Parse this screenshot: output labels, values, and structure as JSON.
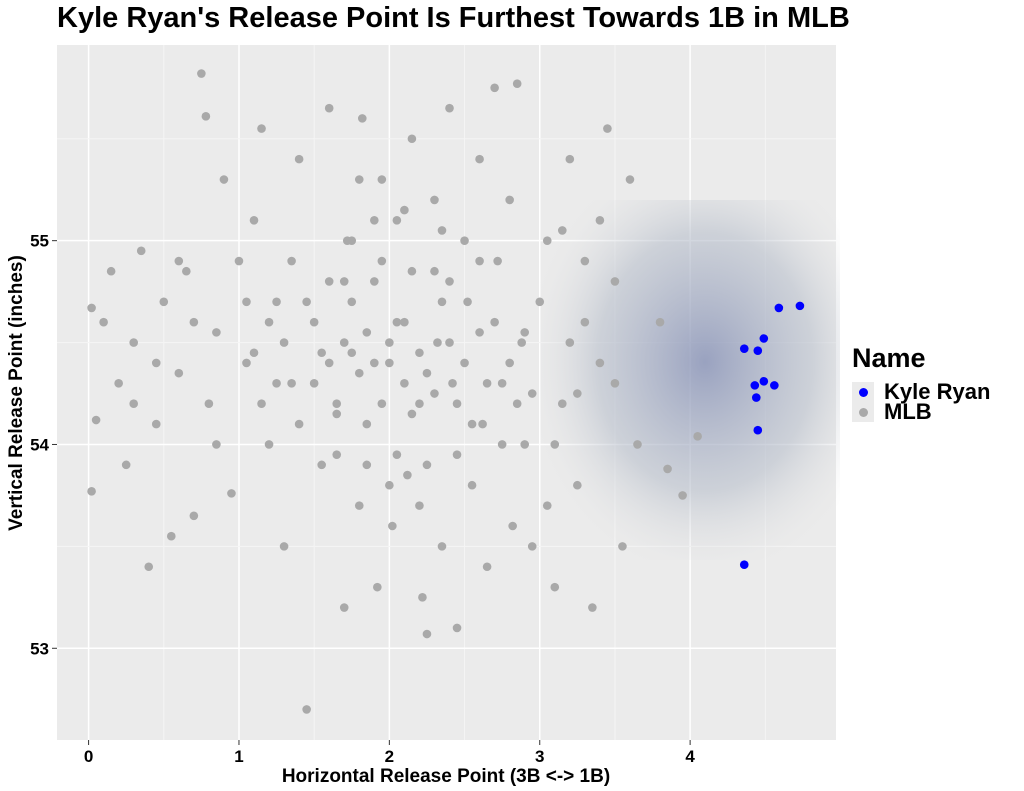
{
  "chart_data": {
    "type": "scatter",
    "title": "Kyle Ryan's Release Point Is Furthest Towards 1B in MLB",
    "xlabel": "Horizontal Release Point (3B <-> 1B)",
    "ylabel": "Vertical Release Point (inches)",
    "xlim": [
      -0.21,
      4.97
    ],
    "ylim": [
      52.55,
      55.96
    ],
    "xticks": [
      0,
      1,
      2,
      3,
      4
    ],
    "yticks": [
      53,
      54,
      55
    ],
    "grid": true,
    "legend": {
      "title": "Name",
      "placement": "right"
    },
    "series": [
      {
        "name": "Kyle Ryan",
        "color": "#0000ff",
        "points": [
          [
            4.59,
            54.67
          ],
          [
            4.73,
            54.68
          ],
          [
            4.49,
            54.52
          ],
          [
            4.36,
            54.47
          ],
          [
            4.45,
            54.46
          ],
          [
            4.49,
            54.31
          ],
          [
            4.43,
            54.29
          ],
          [
            4.56,
            54.29
          ],
          [
            4.44,
            54.23
          ],
          [
            4.45,
            54.07
          ],
          [
            4.36,
            53.41
          ]
        ]
      },
      {
        "name": "MLB",
        "color": "#a9a9a9",
        "points": [
          [
            0.02,
            54.67
          ],
          [
            0.05,
            54.12
          ],
          [
            0.02,
            53.77
          ],
          [
            0.1,
            54.6
          ],
          [
            0.15,
            54.85
          ],
          [
            0.2,
            54.3
          ],
          [
            0.25,
            53.9
          ],
          [
            0.3,
            54.5
          ],
          [
            0.35,
            54.95
          ],
          [
            0.4,
            53.4
          ],
          [
            0.45,
            54.1
          ],
          [
            0.5,
            54.7
          ],
          [
            0.55,
            53.55
          ],
          [
            0.6,
            54.35
          ],
          [
            0.65,
            54.85
          ],
          [
            0.7,
            53.65
          ],
          [
            0.75,
            55.82
          ],
          [
            0.78,
            55.61
          ],
          [
            0.8,
            54.2
          ],
          [
            0.85,
            54.55
          ],
          [
            0.9,
            55.3
          ],
          [
            0.95,
            53.76
          ],
          [
            1.0,
            54.9
          ],
          [
            1.05,
            54.4
          ],
          [
            1.1,
            55.1
          ],
          [
            1.15,
            55.55
          ],
          [
            1.2,
            54.0
          ],
          [
            1.25,
            54.7
          ],
          [
            1.3,
            53.5
          ],
          [
            1.35,
            54.3
          ],
          [
            1.4,
            55.4
          ],
          [
            1.45,
            52.7
          ],
          [
            1.5,
            54.6
          ],
          [
            1.55,
            53.9
          ],
          [
            1.6,
            55.65
          ],
          [
            1.65,
            54.2
          ],
          [
            1.7,
            53.2
          ],
          [
            1.72,
            55.0
          ],
          [
            1.75,
            54.45
          ],
          [
            1.8,
            53.7
          ],
          [
            1.82,
            55.6
          ],
          [
            1.85,
            54.1
          ],
          [
            1.9,
            54.8
          ],
          [
            1.92,
            53.3
          ],
          [
            1.95,
            55.3
          ],
          [
            2.0,
            54.4
          ],
          [
            2.02,
            53.6
          ],
          [
            2.05,
            55.1
          ],
          [
            2.1,
            54.6
          ],
          [
            2.12,
            53.85
          ],
          [
            2.15,
            55.5
          ],
          [
            2.2,
            54.2
          ],
          [
            2.22,
            53.25
          ],
          [
            2.25,
            53.07
          ],
          [
            2.3,
            55.2
          ],
          [
            2.32,
            54.5
          ],
          [
            2.35,
            53.5
          ],
          [
            2.4,
            55.65
          ],
          [
            2.42,
            54.3
          ],
          [
            2.45,
            53.1
          ],
          [
            2.5,
            55.0
          ],
          [
            2.52,
            54.7
          ],
          [
            2.55,
            53.8
          ],
          [
            2.6,
            55.4
          ],
          [
            2.62,
            54.1
          ],
          [
            2.65,
            53.4
          ],
          [
            2.7,
            55.75
          ],
          [
            2.72,
            54.9
          ],
          [
            2.75,
            54.3
          ],
          [
            2.8,
            55.2
          ],
          [
            2.82,
            53.6
          ],
          [
            2.85,
            55.77
          ],
          [
            2.88,
            54.5
          ],
          [
            2.9,
            54.0
          ],
          [
            2.95,
            53.5
          ],
          [
            3.0,
            54.7
          ],
          [
            3.05,
            55.0
          ],
          [
            3.1,
            53.3
          ],
          [
            3.15,
            54.2
          ],
          [
            3.2,
            55.4
          ],
          [
            3.25,
            53.8
          ],
          [
            3.3,
            54.6
          ],
          [
            3.35,
            53.2
          ],
          [
            3.4,
            55.1
          ],
          [
            3.45,
            55.55
          ],
          [
            3.5,
            54.3
          ],
          [
            3.55,
            53.5
          ],
          [
            3.6,
            55.3
          ],
          [
            3.65,
            54.0
          ],
          [
            3.8,
            54.6
          ],
          [
            3.85,
            53.88
          ],
          [
            3.95,
            53.75
          ],
          [
            4.05,
            54.04
          ],
          [
            1.9,
            54.4
          ],
          [
            2.0,
            54.5
          ],
          [
            2.1,
            54.3
          ],
          [
            1.8,
            54.35
          ],
          [
            2.2,
            54.45
          ],
          [
            1.95,
            54.2
          ],
          [
            2.05,
            54.6
          ],
          [
            2.15,
            54.15
          ],
          [
            1.85,
            54.55
          ],
          [
            2.25,
            54.35
          ],
          [
            1.7,
            54.5
          ],
          [
            2.3,
            54.25
          ],
          [
            1.6,
            54.4
          ],
          [
            2.4,
            54.5
          ],
          [
            1.75,
            54.7
          ],
          [
            2.35,
            54.7
          ],
          [
            1.65,
            54.15
          ],
          [
            2.45,
            54.2
          ],
          [
            1.55,
            54.45
          ],
          [
            2.5,
            54.4
          ],
          [
            1.5,
            54.3
          ],
          [
            2.6,
            54.55
          ],
          [
            1.45,
            54.7
          ],
          [
            2.55,
            54.1
          ],
          [
            1.4,
            54.1
          ],
          [
            2.65,
            54.3
          ],
          [
            1.3,
            54.5
          ],
          [
            2.7,
            54.6
          ],
          [
            1.25,
            54.3
          ],
          [
            2.75,
            54.0
          ],
          [
            1.2,
            54.6
          ],
          [
            2.8,
            54.4
          ],
          [
            1.15,
            54.2
          ],
          [
            2.85,
            54.2
          ],
          [
            1.1,
            54.45
          ],
          [
            2.9,
            54.55
          ],
          [
            1.05,
            54.7
          ],
          [
            2.95,
            54.25
          ],
          [
            1.95,
            54.9
          ],
          [
            2.05,
            53.95
          ],
          [
            1.85,
            53.9
          ],
          [
            2.15,
            54.85
          ],
          [
            2.25,
            53.9
          ],
          [
            1.75,
            55.0
          ],
          [
            2.35,
            55.05
          ],
          [
            1.65,
            53.95
          ],
          [
            2.45,
            53.95
          ],
          [
            1.9,
            55.1
          ],
          [
            2.1,
            55.15
          ],
          [
            2.0,
            53.8
          ],
          [
            1.8,
            55.3
          ],
          [
            2.2,
            53.7
          ],
          [
            1.7,
            54.8
          ],
          [
            2.3,
            54.85
          ],
          [
            1.6,
            54.8
          ],
          [
            2.4,
            54.8
          ],
          [
            1.35,
            54.9
          ],
          [
            2.6,
            54.9
          ],
          [
            0.3,
            54.2
          ],
          [
            0.6,
            54.9
          ],
          [
            0.85,
            54.0
          ],
          [
            0.45,
            54.4
          ],
          [
            0.7,
            54.6
          ],
          [
            3.2,
            54.5
          ],
          [
            3.1,
            54.0
          ],
          [
            3.3,
            54.9
          ],
          [
            3.4,
            54.4
          ],
          [
            3.05,
            53.7
          ],
          [
            3.15,
            55.05
          ],
          [
            3.5,
            54.8
          ],
          [
            3.25,
            54.25
          ]
        ]
      }
    ]
  }
}
